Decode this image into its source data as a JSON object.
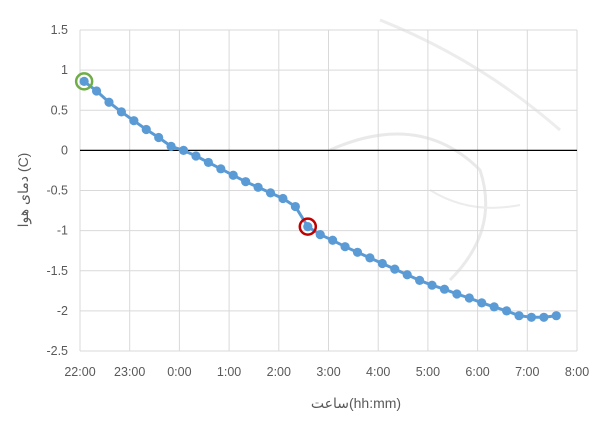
{
  "chart_data": {
    "type": "line",
    "xlabel": "ساعت(hh:mm)",
    "ylabel": "دمای هوا (C)",
    "x_ticks": [
      "22:00",
      "23:00",
      "0:00",
      "1:00",
      "2:00",
      "3:00",
      "4:00",
      "5:00",
      "6:00",
      "7:00",
      "8:00"
    ],
    "y_ticks": [
      "1.5",
      "1",
      "0.5",
      "0",
      "-0.5",
      "-1",
      "-1.5",
      "-2",
      "-2.5"
    ],
    "xlim": [
      "22:00",
      "8:00"
    ],
    "ylim": [
      -2.5,
      1.5
    ],
    "grid": true,
    "series": [
      {
        "color": "#5b9bd5",
        "points": [
          [
            "22:05",
            0.86
          ],
          [
            "22:20",
            0.74
          ],
          [
            "22:35",
            0.6
          ],
          [
            "22:50",
            0.48
          ],
          [
            "23:05",
            0.37
          ],
          [
            "23:20",
            0.26
          ],
          [
            "23:35",
            0.16
          ],
          [
            "23:50",
            0.05
          ],
          [
            "0:05",
            0.0
          ],
          [
            "0:20",
            -0.07
          ],
          [
            "0:35",
            -0.15
          ],
          [
            "0:50",
            -0.23
          ],
          [
            "1:05",
            -0.31
          ],
          [
            "1:20",
            -0.39
          ],
          [
            "1:35",
            -0.46
          ],
          [
            "1:50",
            -0.53
          ],
          [
            "2:05",
            -0.6
          ],
          [
            "2:20",
            -0.7
          ],
          [
            "2:35",
            -0.95
          ],
          [
            "2:50",
            -1.05
          ],
          [
            "3:05",
            -1.12
          ],
          [
            "3:20",
            -1.2
          ],
          [
            "3:35",
            -1.27
          ],
          [
            "3:50",
            -1.34
          ],
          [
            "4:05",
            -1.41
          ],
          [
            "4:20",
            -1.48
          ],
          [
            "4:35",
            -1.55
          ],
          [
            "4:50",
            -1.62
          ],
          [
            "5:05",
            -1.68
          ],
          [
            "5:20",
            -1.73
          ],
          [
            "5:35",
            -1.79
          ],
          [
            "5:50",
            -1.84
          ],
          [
            "6:05",
            -1.9
          ],
          [
            "6:20",
            -1.95
          ],
          [
            "6:35",
            -2.0
          ],
          [
            "6:50",
            -2.06
          ],
          [
            "7:05",
            -2.08
          ],
          [
            "7:20",
            -2.08
          ],
          [
            "7:35",
            -2.06
          ]
        ]
      }
    ],
    "annotations": [
      {
        "shape": "circle",
        "color": "#70ad47",
        "at": [
          "22:05",
          0.86
        ]
      },
      {
        "shape": "circle",
        "color": "#c00000",
        "at": [
          "2:35",
          -0.95
        ]
      }
    ],
    "zero_line_color": "#000000",
    "grid_color": "#d9d9d9"
  }
}
